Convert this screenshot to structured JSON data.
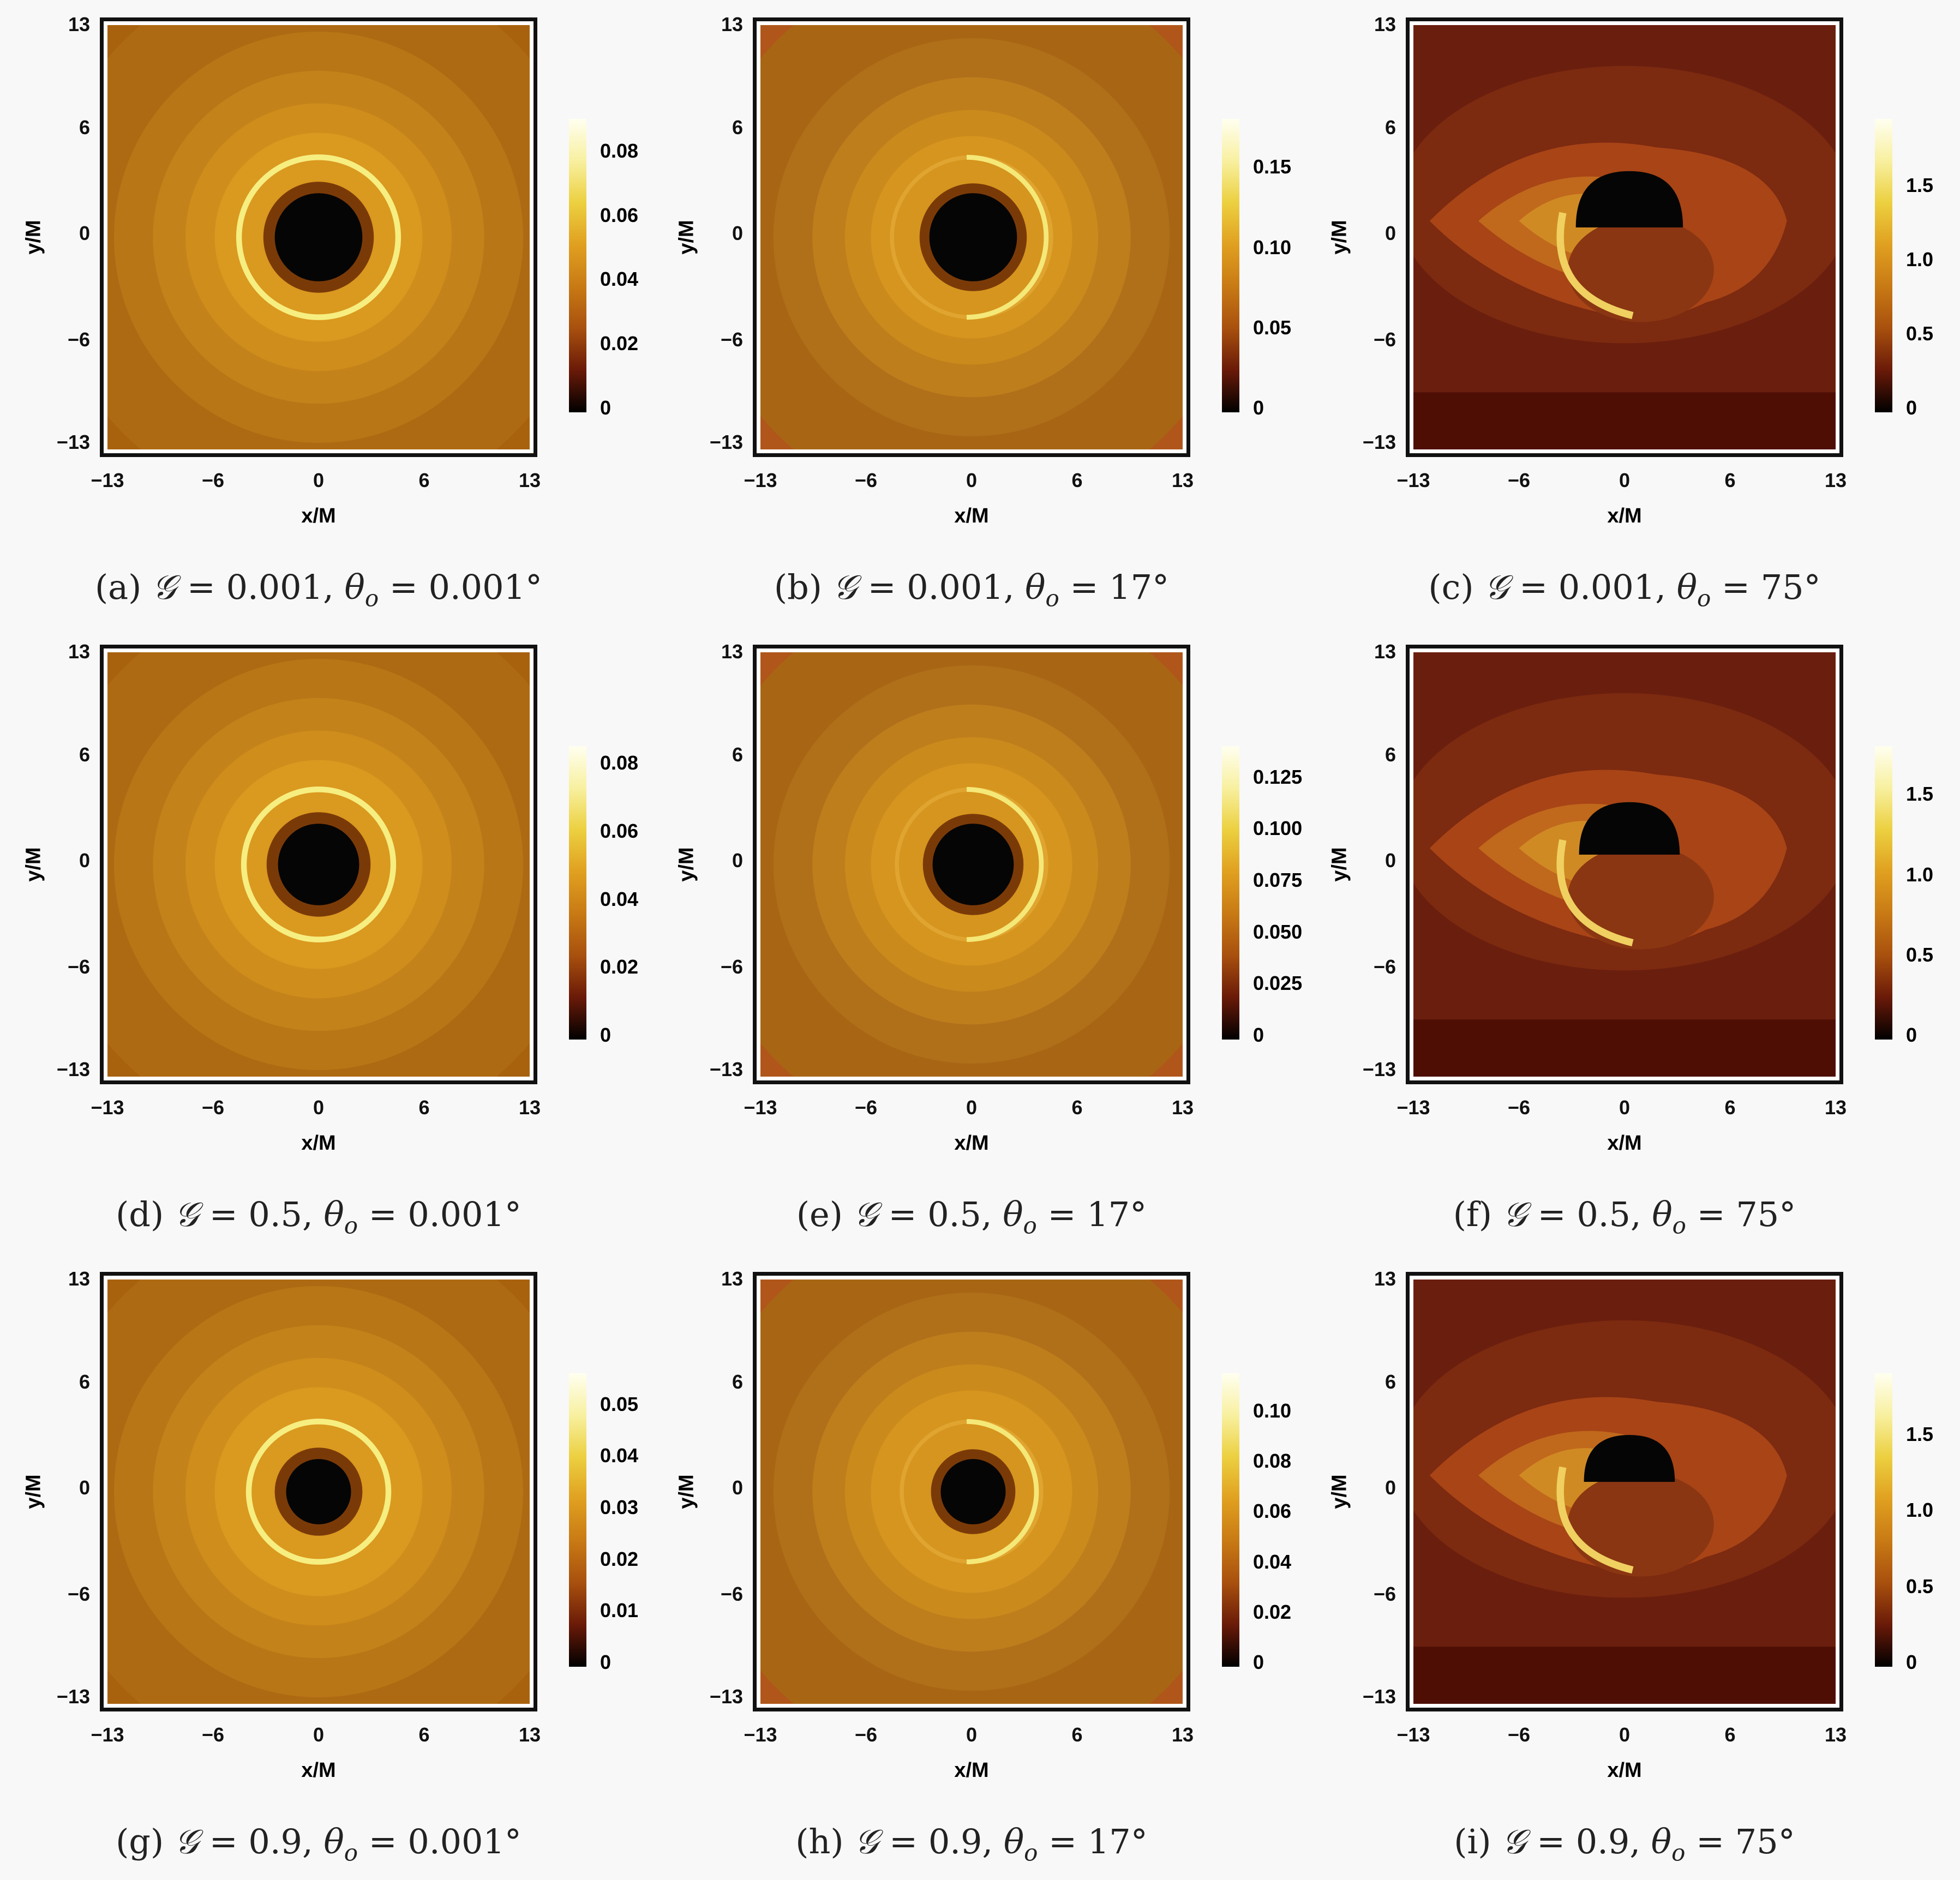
{
  "chart_data": {
    "type": "heatmap",
    "title": "",
    "xlabel": "x/M",
    "ylabel": "y/M",
    "xlim": [
      -13,
      13
    ],
    "ylim": [
      -13,
      13
    ],
    "xticks": [
      "−13",
      "−6",
      "0",
      "6",
      "13"
    ],
    "yticks": [
      "13",
      "6",
      "0",
      "−6",
      "−13"
    ],
    "panels": [
      {
        "tag": "(a)",
        "G": "0.001",
        "theta": "0.001°",
        "kind": "face",
        "shadow_radius": 2.7,
        "ring_radius": 4.9,
        "colorbar_ticks": [
          "0",
          "0.02",
          "0.04",
          "0.06",
          "0.08"
        ],
        "colorbar_max": 0.09
      },
      {
        "tag": "(b)",
        "G": "0.001",
        "theta": "17°",
        "kind": "tilt",
        "shadow_radius": 2.7,
        "ring_radius": 4.9,
        "colorbar_ticks": [
          "0",
          "0.05",
          "0.10",
          "0.15"
        ],
        "colorbar_max": 0.18
      },
      {
        "tag": "(c)",
        "G": "0.001",
        "theta": "75°",
        "kind": "edge",
        "shadow_radius": 3.0,
        "ring_radius": 4.9,
        "colorbar_ticks": [
          "0",
          "0.5",
          "1.0",
          "1.5"
        ],
        "colorbar_max": 1.95
      },
      {
        "tag": "(d)",
        "G": "0.5",
        "theta": "0.001°",
        "kind": "face",
        "shadow_radius": 2.5,
        "ring_radius": 4.6,
        "colorbar_ticks": [
          "0",
          "0.02",
          "0.04",
          "0.06",
          "0.08"
        ],
        "colorbar_max": 0.085
      },
      {
        "tag": "(e)",
        "G": "0.5",
        "theta": "17°",
        "kind": "tilt",
        "shadow_radius": 2.5,
        "ring_radius": 4.6,
        "colorbar_ticks": [
          "0",
          "0.025",
          "0.050",
          "0.075",
          "0.100",
          "0.125"
        ],
        "colorbar_max": 0.14
      },
      {
        "tag": "(f)",
        "G": "0.5",
        "theta": "75°",
        "kind": "edge",
        "shadow_radius": 2.8,
        "ring_radius": 4.6,
        "colorbar_ticks": [
          "0",
          "0.5",
          "1.0",
          "1.5"
        ],
        "colorbar_max": 1.8
      },
      {
        "tag": "(g)",
        "G": "0.9",
        "theta": "0.001°",
        "kind": "face",
        "shadow_radius": 2.0,
        "ring_radius": 4.3,
        "colorbar_ticks": [
          "0",
          "0.01",
          "0.02",
          "0.03",
          "0.04",
          "0.05"
        ],
        "colorbar_max": 0.056
      },
      {
        "tag": "(h)",
        "G": "0.9",
        "theta": "17°",
        "kind": "tilt",
        "shadow_radius": 2.0,
        "ring_radius": 4.3,
        "colorbar_ticks": [
          "0",
          "0.02",
          "0.04",
          "0.06",
          "0.08",
          "0.10"
        ],
        "colorbar_max": 0.115
      },
      {
        "tag": "(i)",
        "G": "0.9",
        "theta": "75°",
        "kind": "edge",
        "shadow_radius": 2.5,
        "ring_radius": 4.3,
        "colorbar_ticks": [
          "0",
          "0.5",
          "1.0",
          "1.5"
        ],
        "colorbar_max": 1.9
      }
    ],
    "colormap": [
      "#000000",
      "#6a1a08",
      "#a8500e",
      "#c87a14",
      "#e0a020",
      "#ecd040",
      "#f8f0a0",
      "#fffff0"
    ],
    "symbol_G": "𝒢",
    "symbol_theta": "θ",
    "symbol_sub": "o"
  }
}
